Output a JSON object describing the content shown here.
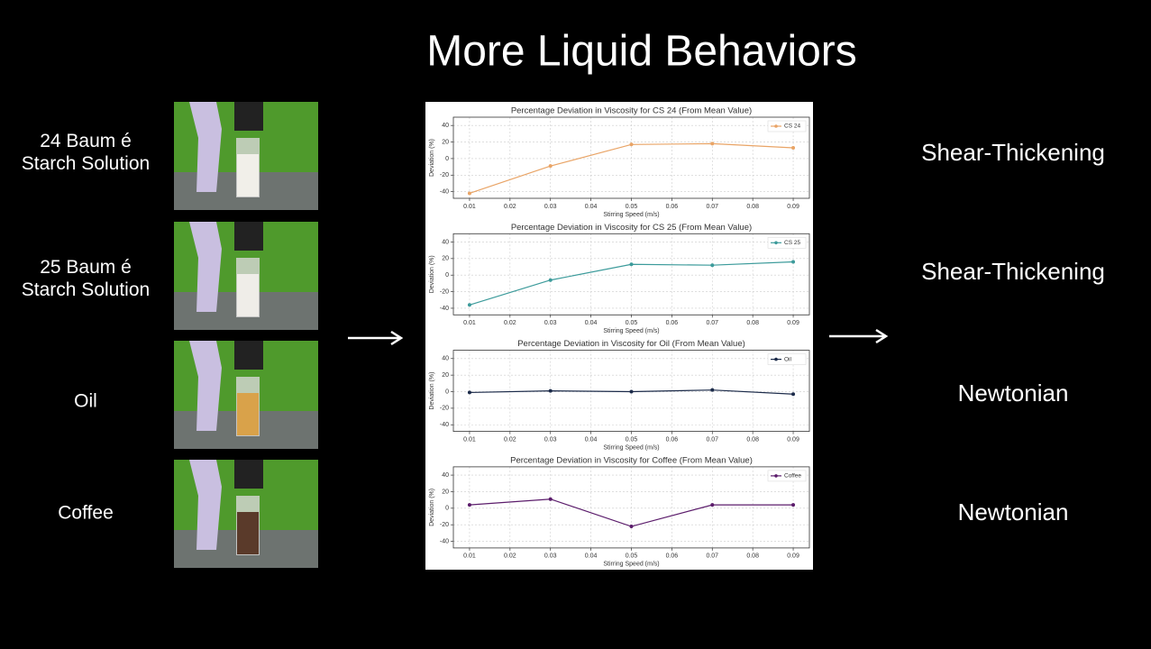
{
  "title": "More Liquid Behaviors",
  "liquids": [
    {
      "label": [
        "24 Baum é",
        "Starch Solution"
      ],
      "behavior": "Shear-Thickening"
    },
    {
      "label": [
        "25 Baum é",
        "Starch Solution"
      ],
      "behavior": "Shear-Thickening"
    },
    {
      "label": [
        "Oil"
      ],
      "behavior": "Newtonian"
    },
    {
      "label": [
        "Coffee"
      ],
      "behavior": "Newtonian"
    }
  ],
  "chart_data": [
    {
      "type": "line",
      "title": "Percentage Deviation in Viscosity for CS 24 (From Mean Value)",
      "x_label": "Stirring Speed (m/s)",
      "y_label": "Deviation (%)",
      "x": [
        0.01,
        0.03,
        0.05,
        0.07,
        0.09
      ],
      "series": [
        {
          "name": "CS 24",
          "color": "#e9a466",
          "values": [
            -42,
            -9,
            17,
            18,
            13
          ]
        }
      ],
      "xlim": [
        0.006,
        0.094
      ],
      "ylim": [
        -48,
        50
      ],
      "xticks": [
        0.01,
        0.02,
        0.03,
        0.04,
        0.05,
        0.06,
        0.07,
        0.08,
        0.09
      ],
      "yticks": [
        -40,
        -20,
        0,
        20,
        40
      ],
      "grid": true,
      "legend": "upper right"
    },
    {
      "type": "line",
      "title": "Percentage Deviation in Viscosity for CS 25 (From Mean Value)",
      "x_label": "Stirring Speed (m/s)",
      "y_label": "Deviation (%)",
      "x": [
        0.01,
        0.03,
        0.05,
        0.07,
        0.09
      ],
      "series": [
        {
          "name": "CS 25",
          "color": "#3c9b9b",
          "values": [
            -36,
            -6,
            13,
            12,
            16
          ]
        }
      ],
      "xlim": [
        0.006,
        0.094
      ],
      "ylim": [
        -48,
        50
      ],
      "xticks": [
        0.01,
        0.02,
        0.03,
        0.04,
        0.05,
        0.06,
        0.07,
        0.08,
        0.09
      ],
      "yticks": [
        -40,
        -20,
        0,
        20,
        40
      ],
      "grid": true,
      "legend": "upper right"
    },
    {
      "type": "line",
      "title": "Percentage Deviation in Viscosity for Oil (From Mean Value)",
      "x_label": "Stirring Speed (m/s)",
      "y_label": "Deviation (%)",
      "x": [
        0.01,
        0.03,
        0.05,
        0.07,
        0.09
      ],
      "series": [
        {
          "name": "Oil",
          "color": "#1c2b4a",
          "values": [
            -1,
            1,
            0,
            2,
            -3
          ]
        }
      ],
      "xlim": [
        0.006,
        0.094
      ],
      "ylim": [
        -48,
        50
      ],
      "xticks": [
        0.01,
        0.02,
        0.03,
        0.04,
        0.05,
        0.06,
        0.07,
        0.08,
        0.09
      ],
      "yticks": [
        -40,
        -20,
        0,
        20,
        40
      ],
      "grid": true,
      "legend": "upper right"
    },
    {
      "type": "line",
      "title": "Percentage Deviation in Viscosity for Coffee (From Mean Value)",
      "x_label": "Stirring Speed (m/s)",
      "y_label": "Deviation (%)",
      "x": [
        0.01,
        0.03,
        0.05,
        0.07,
        0.09
      ],
      "series": [
        {
          "name": "Coffee",
          "color": "#5b1c6b",
          "values": [
            4,
            11,
            -22,
            4,
            4
          ]
        }
      ],
      "xlim": [
        0.006,
        0.094
      ],
      "ylim": [
        -48,
        50
      ],
      "xticks": [
        0.01,
        0.02,
        0.03,
        0.04,
        0.05,
        0.06,
        0.07,
        0.08,
        0.09
      ],
      "yticks": [
        -40,
        -20,
        0,
        20,
        40
      ],
      "grid": true,
      "legend": "upper right"
    }
  ]
}
